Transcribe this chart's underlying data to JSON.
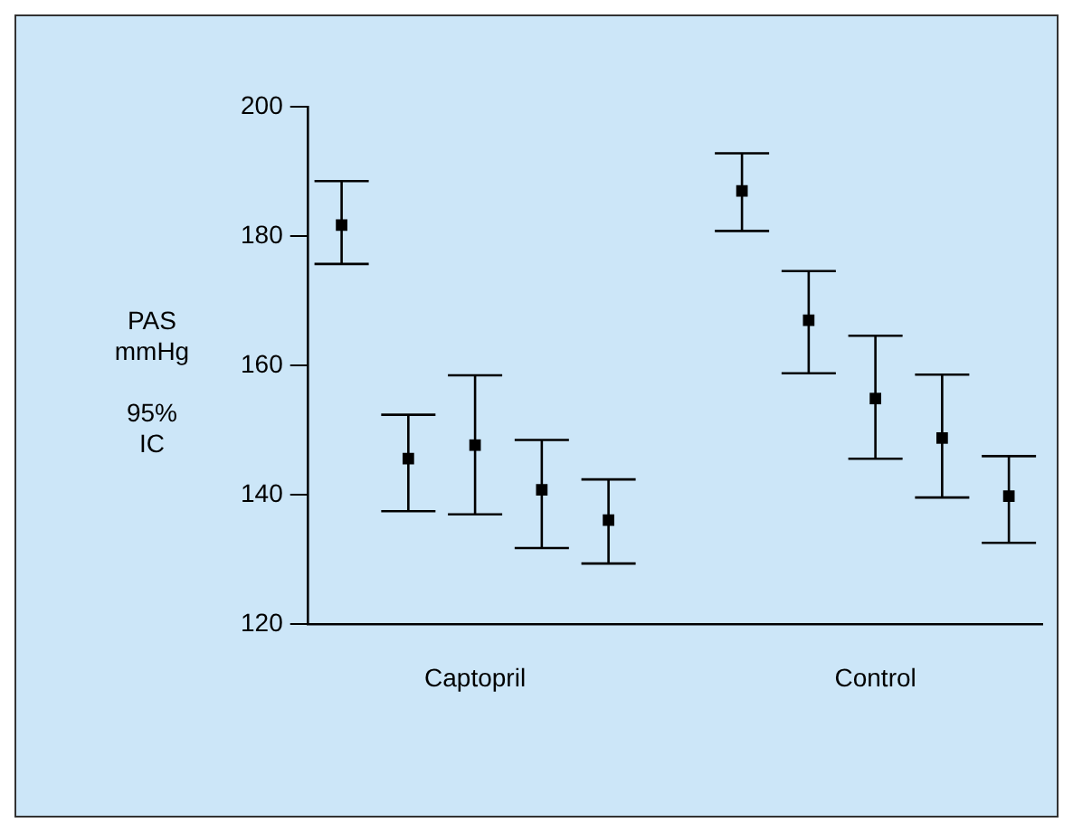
{
  "chart_data": {
    "type": "scatter",
    "ylabel": "PAS\nmmHg\n\n95%\nIC",
    "categories": [
      null,
      null,
      "Captopril",
      null,
      null,
      null,
      null,
      null,
      "Control",
      null,
      null
    ],
    "values": [
      181.7,
      145.6,
      147.7,
      140.8,
      136.1,
      null,
      187,
      167,
      154.9,
      148.8,
      139.8
    ],
    "errors": [
      [
        175.7,
        188.5
      ],
      [
        137.5,
        152.4
      ],
      [
        137,
        158.5
      ],
      [
        131.8,
        148.5
      ],
      [
        129.4,
        142.4
      ],
      null,
      [
        180.8,
        192.8
      ],
      [
        158.8,
        174.6
      ],
      [
        145.6,
        164.6
      ],
      [
        139.6,
        158.6
      ],
      [
        132.6,
        146
      ]
    ],
    "color": "#000000",
    "marker": "square",
    "ylim": [
      120,
      200
    ],
    "yticks": [
      120,
      140,
      160,
      180,
      200
    ],
    "grid": false,
    "legend": false
  }
}
